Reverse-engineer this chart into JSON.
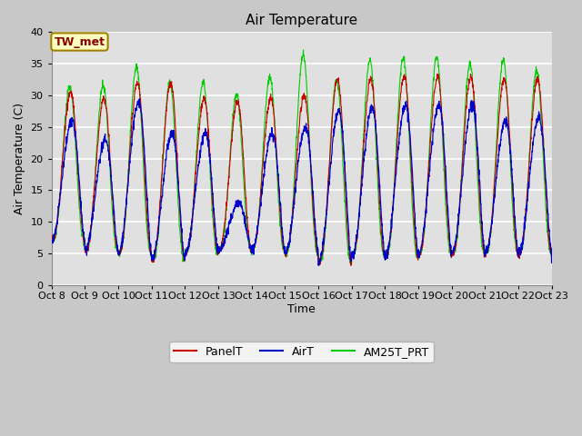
{
  "title": "Air Temperature",
  "ylabel": "Air Temperature (C)",
  "xlabel": "Time",
  "annotation_text": "TW_met",
  "annotation_bg": "#FFFFC0",
  "annotation_border": "#A08000",
  "annotation_fg": "#880000",
  "ylim": [
    0,
    40
  ],
  "xtick_labels": [
    "Oct 8",
    "Oct 9",
    "Oct 10",
    "Oct 11",
    "Oct 12",
    "Oct 13",
    "Oct 14",
    "Oct 15",
    "Oct 16",
    "Oct 17",
    "Oct 18",
    "Oct 19",
    "Oct 20",
    "Oct 21",
    "Oct 22",
    "Oct 23"
  ],
  "legend_labels": [
    "PanelT",
    "AirT",
    "AM25T_PRT"
  ],
  "line_colors": [
    "#cc0000",
    "#0000cc",
    "#00cc00"
  ],
  "fig_bg": "#c8c8c8",
  "plot_bg": "#e0e0e0",
  "grid_color": "#ffffff",
  "figsize": [
    6.4,
    4.8
  ],
  "dpi": 100,
  "num_days": 15,
  "ppd": 144,
  "yticks": [
    0,
    5,
    10,
    15,
    20,
    25,
    30,
    35,
    40
  ],
  "panel_peaks": [
    30.5,
    29.5,
    32.0,
    32.0,
    29.5,
    29.0,
    29.5,
    30.0,
    32.5,
    32.5,
    33.0,
    33.0,
    33.0,
    32.5,
    32.5
  ],
  "air_peaks": [
    26.0,
    23.0,
    29.0,
    24.0,
    24.0,
    13.0,
    24.0,
    25.0,
    27.5,
    28.0,
    28.5,
    28.5,
    28.5,
    26.0,
    26.5
  ],
  "am25_peaks": [
    31.5,
    31.5,
    34.5,
    32.0,
    32.0,
    30.0,
    33.0,
    36.5,
    32.5,
    35.5,
    36.0,
    36.0,
    35.0,
    35.5,
    34.0
  ],
  "min_temps": [
    7.0,
    5.5,
    5.0,
    4.0,
    5.0,
    5.5,
    5.5,
    5.0,
    3.5,
    4.5,
    4.5,
    5.0,
    5.0,
    5.0,
    5.0
  ]
}
